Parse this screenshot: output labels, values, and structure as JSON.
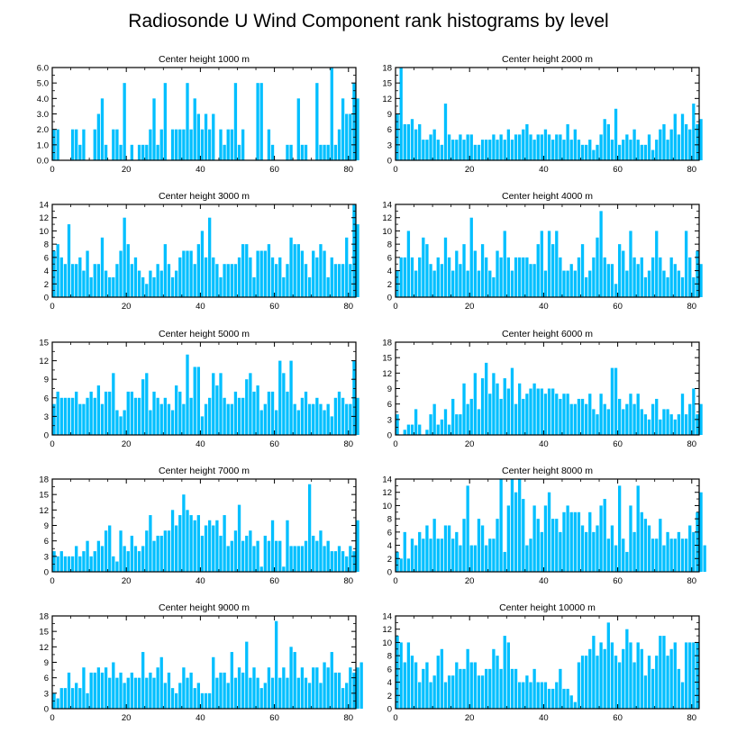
{
  "title": "Radiosonde U Wind Component rank histograms by level",
  "bar_color": "#00bfff",
  "chart_data": [
    {
      "type": "bar",
      "title": "Center height 1000 m",
      "xlim": [
        0,
        82
      ],
      "ylim": [
        0,
        6
      ],
      "yticks": [
        0,
        1,
        2,
        3,
        4,
        5,
        6
      ],
      "ytick_labels": [
        "0.0",
        "1.0",
        "2.0",
        "3.0",
        "4.0",
        "5.0",
        "6.0"
      ],
      "xticks": [
        0,
        20,
        40,
        60,
        80
      ],
      "values": [
        2,
        2,
        0,
        0,
        0,
        2,
        2,
        1,
        2,
        0,
        0,
        2,
        3,
        4,
        1,
        0,
        2,
        2,
        1,
        5,
        0,
        1,
        0,
        1,
        1,
        1,
        2,
        4,
        1,
        2,
        5,
        0,
        2,
        2,
        2,
        2,
        5,
        2,
        4,
        3,
        2,
        3,
        2,
        3,
        0,
        2,
        1,
        2,
        2,
        5,
        1,
        2,
        0,
        0,
        0,
        5,
        5,
        0,
        2,
        1,
        0,
        0,
        0,
        1,
        1,
        0,
        4,
        1,
        1,
        0,
        0,
        5,
        1,
        1,
        1,
        6,
        1,
        2,
        4,
        3,
        3,
        5,
        4
      ]
    },
    {
      "type": "bar",
      "title": "Center height 2000 m",
      "xlim": [
        0,
        82
      ],
      "ylim": [
        0,
        18
      ],
      "yticks": [
        0,
        3,
        6,
        9,
        12,
        15,
        18
      ],
      "ytick_labels": [
        "0",
        "3",
        "6",
        "9",
        "12",
        "15",
        "18"
      ],
      "xticks": [
        0,
        20,
        40,
        60,
        80
      ],
      "values": [
        9,
        18,
        7,
        7,
        8,
        6,
        7,
        4,
        4,
        5,
        6,
        4,
        3,
        11,
        5,
        4,
        4,
        5,
        4,
        5,
        5,
        3,
        3,
        4,
        4,
        4,
        5,
        4,
        5,
        4,
        6,
        4,
        5,
        5,
        6,
        7,
        5,
        4,
        5,
        5,
        6,
        5,
        4,
        5,
        5,
        4,
        7,
        4,
        6,
        4,
        3,
        3,
        4,
        2,
        3,
        5,
        8,
        7,
        4,
        10,
        3,
        4,
        5,
        4,
        6,
        4,
        3,
        3,
        5,
        2,
        4,
        6,
        7,
        4,
        6,
        9,
        5,
        9,
        7,
        6,
        11,
        7,
        8
      ]
    },
    {
      "type": "bar",
      "title": "Center height 3000 m",
      "xlim": [
        0,
        82
      ],
      "ylim": [
        0,
        14
      ],
      "yticks": [
        0,
        2,
        4,
        6,
        8,
        10,
        12,
        14
      ],
      "ytick_labels": [
        "0",
        "2",
        "4",
        "6",
        "8",
        "10",
        "12",
        "14"
      ],
      "xticks": [
        0,
        20,
        40,
        60,
        80
      ],
      "values": [
        7,
        8,
        6,
        5,
        11,
        5,
        5,
        6,
        4,
        7,
        3,
        5,
        5,
        9,
        4,
        3,
        3,
        5,
        7,
        12,
        8,
        5,
        6,
        4,
        3,
        2,
        4,
        3,
        5,
        4,
        8,
        5,
        3,
        4,
        6,
        7,
        7,
        7,
        5,
        8,
        10,
        6,
        12,
        6,
        5,
        3,
        5,
        5,
        5,
        5,
        6,
        8,
        8,
        6,
        3,
        7,
        7,
        7,
        8,
        6,
        5,
        6,
        3,
        5,
        9,
        8,
        8,
        7,
        5,
        3,
        7,
        6,
        8,
        7,
        3,
        6,
        5,
        5,
        5,
        9,
        5,
        14,
        11
      ]
    },
    {
      "type": "bar",
      "title": "Center height 4000 m",
      "xlim": [
        0,
        82
      ],
      "ylim": [
        0,
        14
      ],
      "yticks": [
        0,
        2,
        4,
        6,
        8,
        10,
        12,
        14
      ],
      "ytick_labels": [
        "0",
        "2",
        "4",
        "6",
        "8",
        "10",
        "12",
        "14"
      ],
      "xticks": [
        0,
        20,
        40,
        60,
        80
      ],
      "values": [
        4,
        6,
        6,
        10,
        6,
        4,
        6,
        9,
        8,
        5,
        4,
        6,
        5,
        9,
        6,
        4,
        7,
        5,
        8,
        4,
        12,
        7,
        4,
        8,
        6,
        4,
        3,
        7,
        6,
        10,
        6,
        4,
        6,
        6,
        6,
        6,
        5,
        5,
        8,
        10,
        4,
        10,
        8,
        10,
        6,
        4,
        4,
        5,
        4,
        6,
        8,
        3,
        4,
        6,
        9,
        13,
        6,
        5,
        5,
        2,
        8,
        7,
        4,
        10,
        6,
        5,
        6,
        3,
        4,
        6,
        10,
        6,
        4,
        3,
        6,
        5,
        4,
        3,
        10,
        6,
        3,
        7,
        5
      ]
    },
    {
      "type": "bar",
      "title": "Center height 5000 m",
      "xlim": [
        0,
        82
      ],
      "ylim": [
        0,
        15
      ],
      "yticks": [
        0,
        3,
        6,
        9,
        12,
        15
      ],
      "ytick_labels": [
        "0",
        "3",
        "6",
        "9",
        "12",
        "15"
      ],
      "xticks": [
        0,
        20,
        40,
        60,
        80
      ],
      "values": [
        5,
        7,
        6,
        6,
        6,
        6,
        7,
        5,
        5,
        6,
        7,
        6,
        8,
        5,
        7,
        7,
        10,
        4,
        3,
        4,
        7,
        7,
        6,
        6,
        9,
        10,
        4,
        7,
        6,
        5,
        6,
        5,
        4,
        8,
        7,
        5,
        13,
        6,
        11,
        11,
        3,
        5,
        6,
        10,
        8,
        10,
        6,
        5,
        5,
        7,
        6,
        6,
        9,
        10,
        7,
        8,
        4,
        5,
        7,
        7,
        4,
        12,
        10,
        7,
        12,
        5,
        4,
        6,
        7,
        5,
        5,
        6,
        5,
        4,
        5,
        3,
        6,
        7,
        6,
        5,
        5,
        12,
        6
      ]
    },
    {
      "type": "bar",
      "title": "Center height 6000 m",
      "xlim": [
        0,
        82
      ],
      "ylim": [
        0,
        18
      ],
      "yticks": [
        0,
        3,
        6,
        9,
        12,
        15,
        18
      ],
      "ytick_labels": [
        "0",
        "3",
        "6",
        "9",
        "12",
        "15",
        "18"
      ],
      "xticks": [
        0,
        20,
        40,
        60,
        80
      ],
      "values": [
        4,
        0,
        1,
        2,
        2,
        5,
        2,
        0,
        1,
        4,
        6,
        2,
        3,
        5,
        2,
        7,
        4,
        4,
        10,
        6,
        7,
        12,
        5,
        11,
        14,
        8,
        12,
        10,
        7,
        11,
        9,
        13,
        6,
        10,
        7,
        8,
        9,
        10,
        9,
        9,
        8,
        9,
        9,
        8,
        7,
        8,
        8,
        6,
        6,
        7,
        7,
        6,
        8,
        5,
        4,
        8,
        6,
        5,
        13,
        13,
        7,
        5,
        6,
        8,
        6,
        8,
        5,
        4,
        3,
        6,
        7,
        3,
        5,
        5,
        4,
        3,
        4,
        8,
        4,
        6,
        9,
        4,
        6
      ]
    },
    {
      "type": "bar",
      "title": "Center height 7000 m",
      "xlim": [
        0,
        82
      ],
      "ylim": [
        0,
        18
      ],
      "yticks": [
        0,
        3,
        6,
        9,
        12,
        15,
        18
      ],
      "ytick_labels": [
        "0",
        "3",
        "6",
        "9",
        "12",
        "15",
        "18"
      ],
      "xticks": [
        0,
        20,
        40,
        60,
        80
      ],
      "values": [
        4,
        3,
        4,
        3,
        3,
        3,
        5,
        3,
        4,
        6,
        3,
        4,
        6,
        5,
        8,
        9,
        3,
        2,
        8,
        5,
        4,
        7,
        5,
        4,
        5,
        8,
        11,
        6,
        7,
        7,
        8,
        8,
        12,
        9,
        11,
        15,
        12,
        11,
        10,
        11,
        7,
        9,
        10,
        9,
        10,
        7,
        11,
        5,
        6,
        8,
        13,
        6,
        7,
        8,
        5,
        6,
        1,
        7,
        6,
        10,
        6,
        6,
        1,
        10,
        5,
        5,
        5,
        5,
        6,
        17,
        7,
        6,
        8,
        5,
        6,
        4,
        4,
        5,
        4,
        3,
        5,
        4,
        10
      ]
    },
    {
      "type": "bar",
      "title": "Center height 8000 m",
      "xlim": [
        0,
        82
      ],
      "ylim": [
        0,
        14
      ],
      "yticks": [
        0,
        2,
        4,
        6,
        8,
        10,
        12,
        14
      ],
      "ytick_labels": [
        "0",
        "2",
        "4",
        "6",
        "8",
        "10",
        "12",
        "14"
      ],
      "xticks": [
        0,
        20,
        40,
        60,
        80
      ],
      "values": [
        3,
        2,
        6,
        2,
        5,
        4,
        6,
        5,
        7,
        5,
        8,
        5,
        5,
        7,
        7,
        5,
        6,
        4,
        8,
        13,
        4,
        4,
        8,
        7,
        4,
        5,
        5,
        8,
        14,
        3,
        10,
        14,
        12,
        14,
        11,
        4,
        5,
        10,
        8,
        6,
        10,
        12,
        8,
        8,
        6,
        9,
        10,
        9,
        9,
        9,
        7,
        6,
        9,
        6,
        7,
        10,
        11,
        5,
        7,
        4,
        13,
        5,
        3,
        10,
        6,
        13,
        9,
        8,
        7,
        5,
        5,
        8,
        4,
        6,
        5,
        5,
        6,
        5,
        5,
        7,
        6,
        9,
        12,
        4
      ]
    },
    {
      "type": "bar",
      "title": "Center height 9000 m",
      "xlim": [
        0,
        82
      ],
      "ylim": [
        0,
        18
      ],
      "yticks": [
        0,
        3,
        6,
        9,
        12,
        15,
        18
      ],
      "ytick_labels": [
        "0",
        "3",
        "6",
        "9",
        "12",
        "15",
        "18"
      ],
      "xticks": [
        0,
        20,
        40,
        60,
        80
      ],
      "values": [
        3,
        2,
        4,
        4,
        7,
        4,
        5,
        4,
        8,
        3,
        7,
        7,
        8,
        7,
        8,
        6,
        9,
        6,
        7,
        5,
        6,
        7,
        6,
        6,
        11,
        6,
        7,
        6,
        8,
        10,
        5,
        7,
        4,
        3,
        5,
        8,
        6,
        7,
        4,
        5,
        3,
        3,
        3,
        10,
        6,
        7,
        7,
        5,
        11,
        6,
        8,
        7,
        13,
        6,
        8,
        6,
        4,
        5,
        8,
        6,
        17,
        6,
        8,
        6,
        12,
        11,
        6,
        8,
        6,
        5,
        8,
        8,
        5,
        9,
        8,
        11,
        7,
        7,
        4,
        5,
        8,
        7,
        8,
        9
      ]
    },
    {
      "type": "bar",
      "title": "Center height 10000 m",
      "xlim": [
        0,
        82
      ],
      "ylim": [
        0,
        14
      ],
      "yticks": [
        0,
        2,
        4,
        6,
        8,
        10,
        12,
        14
      ],
      "ytick_labels": [
        "0",
        "2",
        "4",
        "6",
        "8",
        "10",
        "12",
        "14"
      ],
      "xticks": [
        0,
        20,
        40,
        60,
        80
      ],
      "values": [
        11,
        10,
        7,
        10,
        8,
        7,
        4,
        6,
        7,
        4,
        5,
        8,
        9,
        4,
        5,
        5,
        7,
        6,
        6,
        9,
        7,
        7,
        5,
        5,
        6,
        6,
        9,
        8,
        6,
        11,
        10,
        6,
        6,
        4,
        4,
        5,
        4,
        6,
        4,
        4,
        4,
        3,
        3,
        4,
        6,
        3,
        3,
        2,
        1,
        7,
        8,
        8,
        9,
        11,
        8,
        10,
        9,
        13,
        10,
        8,
        7,
        9,
        12,
        10,
        7,
        10,
        9,
        5,
        8,
        6,
        8,
        11,
        11,
        8,
        9,
        10,
        6,
        4,
        10,
        10,
        10,
        10
      ]
    }
  ]
}
